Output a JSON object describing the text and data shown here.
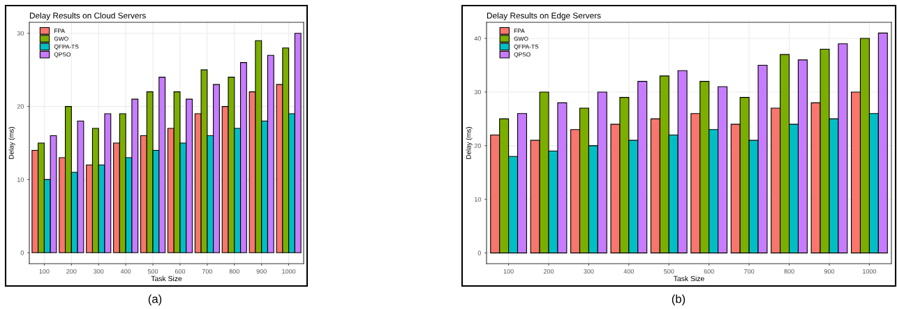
{
  "chart_data": [
    {
      "type": "bar",
      "title": "Delay Results on Cloud Servers",
      "xlabel": "Task Size",
      "ylabel": "Delay (ms)",
      "categories": [
        "100",
        "200",
        "300",
        "400",
        "500",
        "600",
        "700",
        "800",
        "900",
        "1000"
      ],
      "series": [
        {
          "name": "FPA",
          "color": "#f8766d",
          "values": [
            14,
            13,
            12,
            15,
            16,
            17,
            19,
            20,
            22,
            23
          ]
        },
        {
          "name": "GWO",
          "color": "#7cae00",
          "values": [
            15,
            20,
            17,
            19,
            22,
            22,
            25,
            24,
            29,
            28
          ]
        },
        {
          "name": "QFPA-TS",
          "color": "#00bfc4",
          "values": [
            10,
            11,
            12,
            13,
            14,
            15,
            16,
            17,
            18,
            19
          ]
        },
        {
          "name": "QPSO",
          "color": "#c77cff",
          "values": [
            16,
            18,
            19,
            21,
            24,
            21,
            23,
            26,
            27,
            30
          ]
        }
      ],
      "ylim": [
        -1.5,
        31.5
      ],
      "yticks": [
        0,
        10,
        20,
        30
      ],
      "grid": true,
      "legend": "top left",
      "annotations": [
        "(a)"
      ]
    },
    {
      "type": "bar",
      "title": "Delay Results on Edge Servers",
      "xlabel": "Task Size",
      "ylabel": "Delay (ms)",
      "categories": [
        "100",
        "200",
        "300",
        "400",
        "500",
        "600",
        "700",
        "800",
        "900",
        "1000"
      ],
      "series": [
        {
          "name": "FPA",
          "color": "#f8766d",
          "values": [
            22,
            21,
            23,
            24,
            25,
            26,
            24,
            27,
            28,
            30
          ]
        },
        {
          "name": "GWO",
          "color": "#7cae00",
          "values": [
            25,
            30,
            27,
            29,
            33,
            32,
            29,
            37,
            38,
            40
          ]
        },
        {
          "name": "QFPA-TS",
          "color": "#00bfc4",
          "values": [
            18,
            19,
            20,
            21,
            22,
            23,
            21,
            24,
            25,
            26
          ]
        },
        {
          "name": "QPSO",
          "color": "#c77cff",
          "values": [
            26,
            28,
            30,
            32,
            34,
            31,
            35,
            36,
            39,
            41
          ]
        }
      ],
      "ylim": [
        -2,
        43
      ],
      "yticks": [
        0,
        10,
        20,
        30,
        40
      ],
      "grid": true,
      "legend": "top left",
      "annotations": [
        "(b)"
      ]
    }
  ]
}
